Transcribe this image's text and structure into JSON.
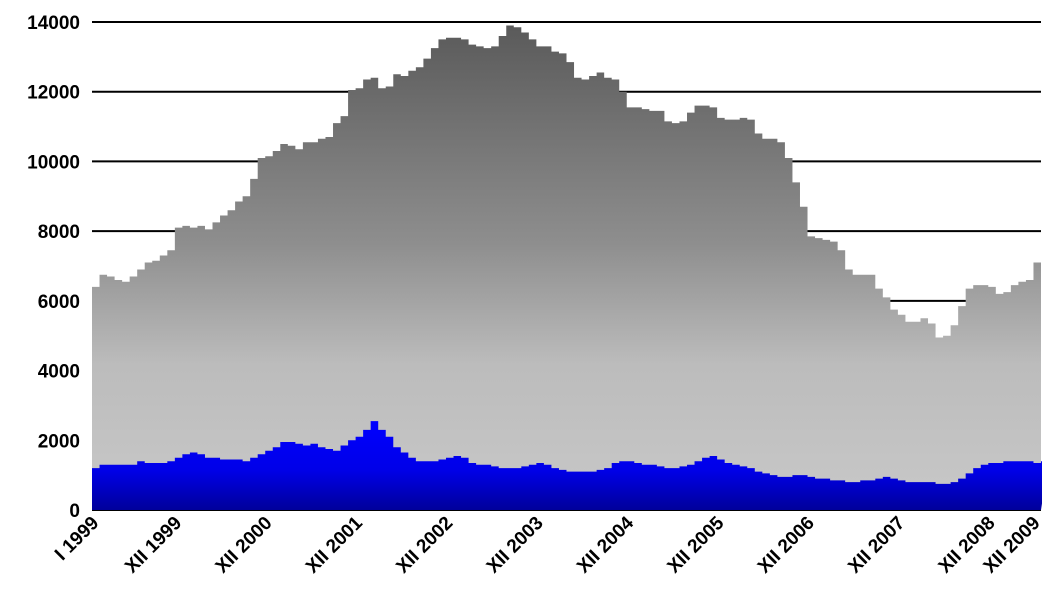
{
  "chart_data": {
    "type": "area",
    "title": "",
    "xlabel": "",
    "ylabel": "",
    "ylim": [
      0,
      14000
    ],
    "yticks": [
      "0",
      "2000",
      "4000",
      "6000",
      "8000",
      "10000",
      "12000",
      "14000"
    ],
    "grid": true,
    "xtick_labels": [
      "I 1999",
      "XII 1999",
      "XII 2000",
      "XII 2001",
      "XII 2002",
      "XII 2003",
      "XII 2004",
      "XII 2005",
      "XII 2006",
      "XII 2007",
      "XII 2008",
      "XII 2009"
    ],
    "x_period": "monthly, I 1999 – XII 2009",
    "colors": {
      "total_top": "#5a5a5a",
      "total_mid": "#bcbcbc",
      "lower": "#0000ff",
      "lower_dark": "#0000a0"
    },
    "series": [
      {
        "values": [
          6400,
          6750,
          6700,
          6600,
          6550,
          6700,
          6900,
          7100,
          7150,
          7300,
          7450,
          8100,
          8150,
          8100,
          8150,
          8050,
          8250,
          8450,
          8600,
          8850,
          9000,
          9500,
          10100,
          10150,
          10300,
          10500,
          10450,
          10350,
          10550,
          10550,
          10650,
          10700,
          11100,
          11300,
          12050,
          12100,
          12350,
          12400,
          12100,
          12150,
          12500,
          12450,
          12600,
          12700,
          12950,
          13250,
          13500,
          13550,
          13550,
          13500,
          13350,
          13300,
          13250,
          13300,
          13600,
          13900,
          13850,
          13700,
          13500,
          13300,
          13300,
          13150,
          13100,
          12850,
          12400,
          12350,
          12450,
          12550,
          12400,
          12350,
          12000,
          11550,
          11550,
          11500,
          11450,
          11450,
          11150,
          11100,
          11150,
          11400,
          11600,
          11600,
          11550,
          11250,
          11200,
          11200,
          11250,
          11200,
          10800,
          10650,
          10650,
          10550,
          10100,
          9400,
          8700,
          7850,
          7800,
          7750,
          7700,
          7450,
          6900,
          6750,
          6750,
          6750,
          6350,
          6100,
          5750,
          5600,
          5400,
          5400,
          5500,
          5350,
          4950,
          5000,
          5300,
          5850,
          6350,
          6450,
          6450,
          6400,
          6200,
          6250,
          6450,
          6550,
          6600,
          7100
        ]
      },
      {
        "values": [
          1200,
          1300,
          1300,
          1300,
          1300,
          1300,
          1400,
          1350,
          1350,
          1350,
          1400,
          1500,
          1600,
          1650,
          1600,
          1500,
          1500,
          1450,
          1450,
          1450,
          1400,
          1500,
          1600,
          1700,
          1800,
          1950,
          1950,
          1900,
          1850,
          1900,
          1800,
          1750,
          1700,
          1850,
          2000,
          2100,
          2300,
          2550,
          2300,
          2100,
          1800,
          1650,
          1500,
          1400,
          1400,
          1400,
          1450,
          1500,
          1550,
          1500,
          1350,
          1300,
          1300,
          1250,
          1200,
          1200,
          1200,
          1250,
          1300,
          1350,
          1300,
          1200,
          1150,
          1100,
          1100,
          1100,
          1100,
          1150,
          1200,
          1350,
          1400,
          1400,
          1350,
          1300,
          1300,
          1250,
          1200,
          1200,
          1250,
          1300,
          1400,
          1500,
          1550,
          1450,
          1350,
          1300,
          1250,
          1200,
          1100,
          1050,
          1000,
          950,
          950,
          1000,
          1000,
          950,
          900,
          900,
          850,
          850,
          800,
          800,
          850,
          850,
          900,
          950,
          900,
          850,
          800,
          800,
          800,
          800,
          750,
          750,
          800,
          900,
          1050,
          1200,
          1300,
          1350,
          1350,
          1400,
          1400,
          1400,
          1400,
          1350,
          1400
        ]
      }
    ]
  }
}
